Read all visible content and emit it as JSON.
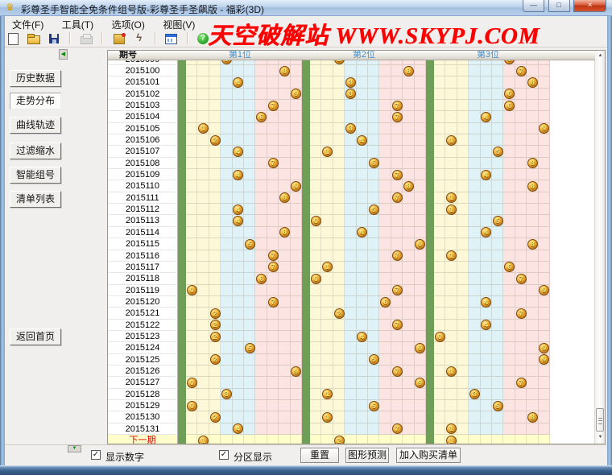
{
  "window": {
    "title": "彩尊圣手智能全免条件组号版-彩尊圣手圣飙版 -  福彩(3D)",
    "controls": {
      "minimize": "—",
      "maximize": "□",
      "close": "×"
    }
  },
  "menu": {
    "items": [
      "文件(F)",
      "工具(T)",
      "选项(O)",
      "视图(V)"
    ]
  },
  "toolbar": {
    "icons": [
      "new-file-icon",
      "open-file-icon",
      "save-icon",
      "print-icon",
      "clear-icon",
      "lightning-icon",
      "chart-window-icon",
      "help-icon"
    ]
  },
  "watermark": "天空破解站 WWW.SKYPJ.COM",
  "sidebar": {
    "buttons": [
      "历史数据",
      "走势分布",
      "曲线轨迹",
      "过滤缩水",
      "智能组号",
      "清单列表"
    ],
    "active_index": 1,
    "home_button": "返回首页"
  },
  "chart": {
    "period_header": "期号",
    "position_headers": [
      "第1位",
      "第2位",
      "第3位"
    ],
    "digit_zones": {
      "yellow": "0-2",
      "blue": "3-5",
      "pink": "6-9"
    },
    "rows": [
      {
        "period": "2015099",
        "digits": [
          3,
          2,
          6
        ]
      },
      {
        "period": "2015100",
        "digits": [
          8,
          8,
          7
        ]
      },
      {
        "period": "2015101",
        "digits": [
          4,
          3,
          8
        ]
      },
      {
        "period": "2015102",
        "digits": [
          9,
          3,
          6
        ]
      },
      {
        "period": "2015103",
        "digits": [
          7,
          7,
          6
        ]
      },
      {
        "period": "2015104",
        "digits": [
          6,
          7,
          4
        ]
      },
      {
        "period": "2015105",
        "digits": [
          1,
          3,
          9
        ]
      },
      {
        "period": "2015106",
        "digits": [
          2,
          4,
          1
        ]
      },
      {
        "period": "2015107",
        "digits": [
          4,
          1,
          5
        ]
      },
      {
        "period": "2015108",
        "digits": [
          7,
          5,
          8
        ]
      },
      {
        "period": "2015109",
        "digits": [
          4,
          7,
          4
        ]
      },
      {
        "period": "2015110",
        "digits": [
          9,
          8,
          8
        ]
      },
      {
        "period": "2015111",
        "digits": [
          8,
          7,
          1
        ]
      },
      {
        "period": "2015112",
        "digits": [
          4,
          5,
          1
        ]
      },
      {
        "period": "2015113",
        "digits": [
          4,
          0,
          5
        ]
      },
      {
        "period": "2015114",
        "digits": [
          8,
          4,
          4
        ]
      },
      {
        "period": "2015115",
        "digits": [
          5,
          9,
          8
        ]
      },
      {
        "period": "2015116",
        "digits": [
          7,
          7,
          1
        ]
      },
      {
        "period": "2015117",
        "digits": [
          7,
          1,
          6
        ]
      },
      {
        "period": "2015118",
        "digits": [
          6,
          0,
          7
        ]
      },
      {
        "period": "2015119",
        "digits": [
          0,
          7,
          9
        ]
      },
      {
        "period": "2015120",
        "digits": [
          7,
          6,
          4
        ]
      },
      {
        "period": "2015121",
        "digits": [
          2,
          2,
          7
        ]
      },
      {
        "period": "2015122",
        "digits": [
          2,
          7,
          4
        ]
      },
      {
        "period": "2015123",
        "digits": [
          2,
          4,
          0
        ]
      },
      {
        "period": "2015124",
        "digits": [
          5,
          9,
          9
        ]
      },
      {
        "period": "2015125",
        "digits": [
          2,
          5,
          9
        ]
      },
      {
        "period": "2015126",
        "digits": [
          9,
          7,
          1
        ]
      },
      {
        "period": "2015127",
        "digits": [
          0,
          9,
          7
        ]
      },
      {
        "period": "2015128",
        "digits": [
          3,
          1,
          3
        ]
      },
      {
        "period": "2015129",
        "digits": [
          0,
          5,
          5
        ]
      },
      {
        "period": "2015130",
        "digits": [
          2,
          1,
          8
        ]
      },
      {
        "period": "2015131",
        "digits": [
          4,
          7,
          1
        ]
      },
      {
        "period": "下一期",
        "digits": [
          1,
          2,
          1
        ],
        "is_next": true
      }
    ]
  },
  "footer": {
    "checkboxes": [
      {
        "label": "显示数字",
        "checked": true
      },
      {
        "label": "分区显示",
        "checked": true
      }
    ],
    "buttons": [
      "重置",
      "图形预测",
      "加入购买清单"
    ]
  },
  "colors": {
    "watermark_red": "#ff0000",
    "separator_green": "#6f9e56",
    "zone_yellow": "#fcf8d8",
    "zone_blue": "#def2f8",
    "zone_pink": "#fbe4e2",
    "next_row_bg": "#ffffcc",
    "ball_gold": "#d98f1f",
    "header_blue": "#3b8fd4",
    "next_label_red": "#dd0000"
  }
}
